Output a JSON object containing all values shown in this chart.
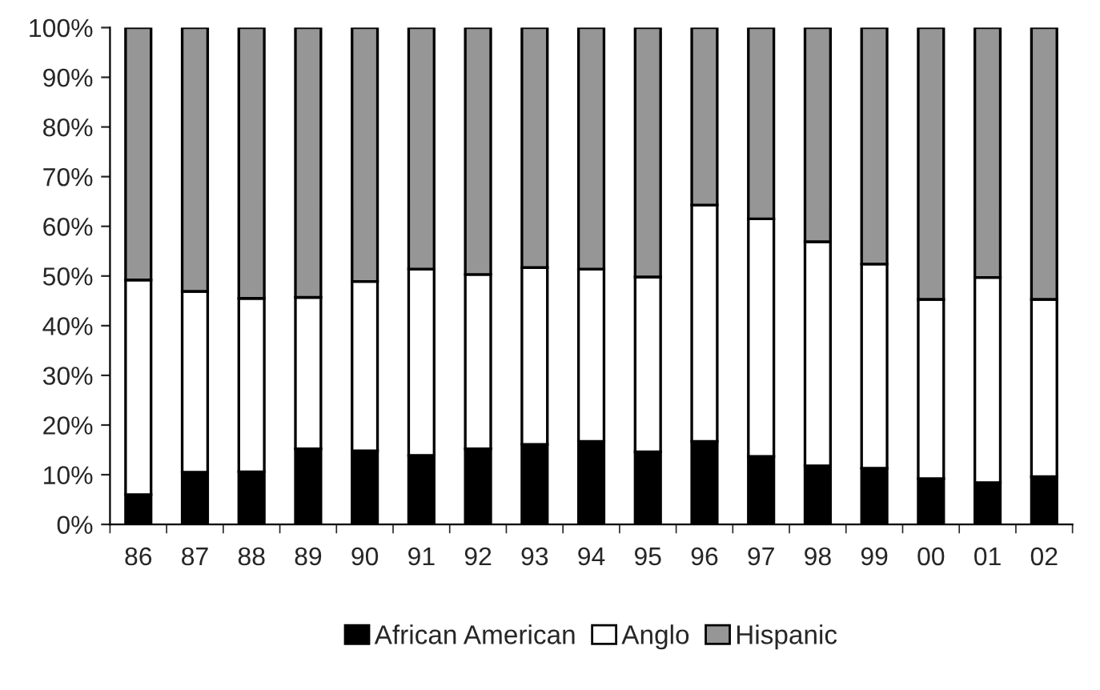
{
  "chart_data": {
    "type": "bar",
    "stacked": true,
    "categories": [
      "86",
      "87",
      "88",
      "89",
      "90",
      "91",
      "92",
      "93",
      "94",
      "95",
      "96",
      "97",
      "98",
      "99",
      "00",
      "01",
      "02"
    ],
    "series": [
      {
        "name": "African American",
        "color": "#000000",
        "values": [
          6.0,
          10.5,
          10.6,
          15.2,
          14.8,
          13.9,
          15.2,
          16.1,
          16.7,
          14.6,
          16.7,
          13.7,
          11.8,
          11.3,
          9.2,
          8.4,
          9.6
        ]
      },
      {
        "name": "Anglo",
        "color": "#ffffff",
        "values": [
          43.2,
          36.4,
          34.9,
          30.5,
          34.1,
          37.5,
          35.1,
          35.6,
          34.7,
          35.2,
          47.6,
          47.8,
          45.1,
          41.1,
          36.1,
          41.3,
          35.7
        ]
      },
      {
        "name": "Hispanic",
        "color": "#969696",
        "values": [
          50.8,
          53.1,
          54.5,
          54.3,
          51.1,
          48.6,
          49.7,
          48.3,
          48.6,
          50.2,
          35.7,
          38.5,
          43.1,
          47.6,
          54.7,
          50.3,
          54.7
        ]
      }
    ],
    "ylim": [
      0,
      100
    ],
    "yticks": [
      {
        "value": 0,
        "label": "0%"
      },
      {
        "value": 10,
        "label": "10%"
      },
      {
        "value": 20,
        "label": "20%"
      },
      {
        "value": 30,
        "label": "30%"
      },
      {
        "value": 40,
        "label": "40%"
      },
      {
        "value": 50,
        "label": "50%"
      },
      {
        "value": 60,
        "label": "60%"
      },
      {
        "value": 70,
        "label": "70%"
      },
      {
        "value": 80,
        "label": "80%"
      },
      {
        "value": 90,
        "label": "90%"
      },
      {
        "value": 100,
        "label": "100%"
      }
    ],
    "legend": "bottom"
  }
}
